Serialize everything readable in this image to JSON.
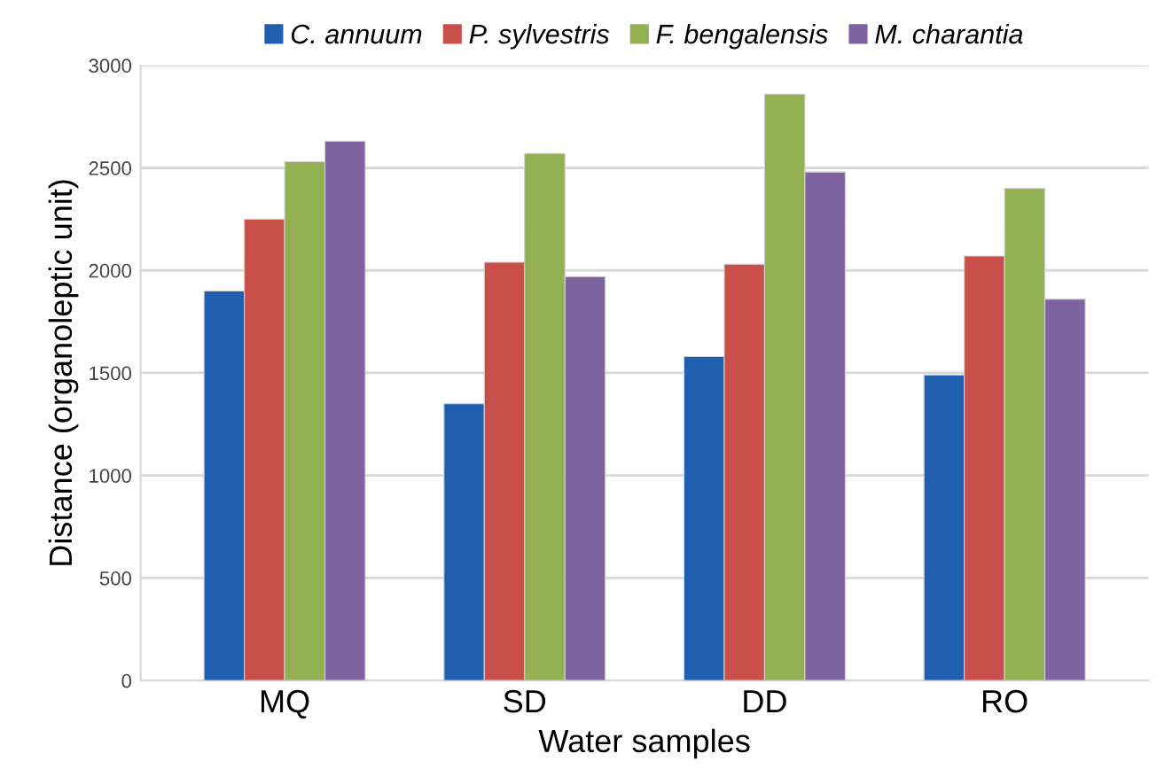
{
  "chart_data": {
    "type": "bar",
    "xlabel": "Water samples",
    "ylabel": "Distance (organoleptic unit)",
    "categories": [
      "MQ",
      "SD",
      "DD",
      "RO"
    ],
    "series": [
      {
        "name": "C. annuum",
        "color": "#1f5fb0",
        "values": [
          1900,
          1350,
          1580,
          1490
        ]
      },
      {
        "name": "P. sylvestris",
        "color": "#c9504a",
        "values": [
          2250,
          2040,
          2030,
          2070
        ]
      },
      {
        "name": "F. bengalensis",
        "color": "#93b152",
        "values": [
          2530,
          2570,
          2860,
          2400
        ]
      },
      {
        "name": "M. charantia",
        "color": "#7f63a0",
        "values": [
          2630,
          1970,
          2480,
          1860
        ]
      }
    ],
    "ylim": [
      0,
      3000
    ],
    "yticks": [
      0,
      500,
      1000,
      1500,
      2000,
      2500,
      3000
    ],
    "grid": "y",
    "legend": "top"
  }
}
